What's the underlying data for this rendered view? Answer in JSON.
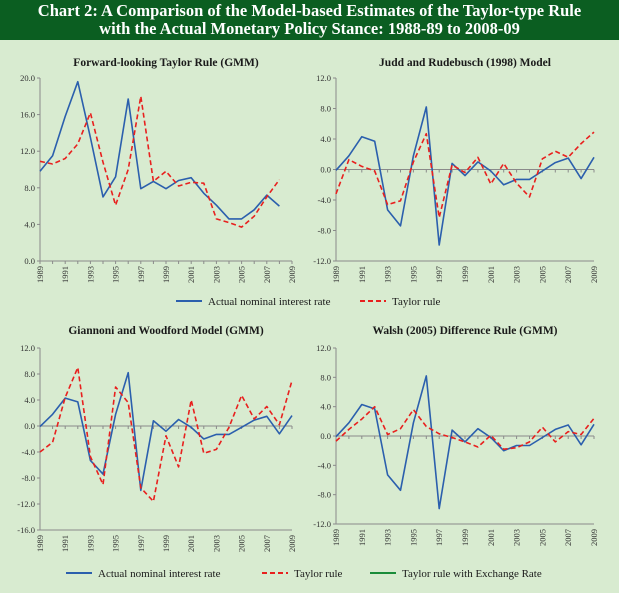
{
  "title_line1": "Chart 2: A Comparison of the Model-based Estimates of the Taylor-type Rule",
  "title_line2": "with the Actual Monetary Policy Stance: 1988-89 to 2008-09",
  "colors": {
    "title_bg": "#0b5e21",
    "title_text": "#ffffff",
    "background": "#d8ebd0",
    "actual": "#2b5fad",
    "taylor": "#e8201e",
    "exchange": "#1a8c3a",
    "axis": "#8a8a8a"
  },
  "chart_data": [
    {
      "type": "line",
      "title": "Forward-looking Taylor Rule (GMM)",
      "ylim": [
        0,
        20
      ],
      "yticks": [
        "0.0",
        "4.0",
        "8.0",
        "12.0",
        "16.0",
        "20.0"
      ],
      "xlabel": "",
      "ylabel": "",
      "x": [
        1989,
        1990,
        1991,
        1992,
        1993,
        1994,
        1995,
        1996,
        1997,
        1998,
        1999,
        2000,
        2001,
        2002,
        2003,
        2004,
        2005,
        2006,
        2007,
        2008,
        2009
      ],
      "xticks": [
        "1989",
        "1991",
        "1993",
        "1995",
        "1997",
        "1999",
        "2001",
        "2003",
        "2005",
        "2007",
        "2009"
      ],
      "series": [
        {
          "name": "Actual nominal interest rate",
          "style": "actual",
          "values": [
            9.8,
            11.5,
            15.8,
            19.6,
            13.5,
            7.0,
            9.2,
            17.7,
            7.9,
            8.7,
            7.9,
            8.8,
            9.1,
            7.4,
            6.1,
            4.6,
            4.6,
            5.6,
            7.2,
            6.0,
            null
          ]
        },
        {
          "name": "Taylor rule",
          "style": "taylor",
          "values": [
            10.9,
            10.6,
            11.2,
            12.8,
            16.2,
            10.8,
            6.1,
            10.0,
            18.0,
            8.7,
            9.8,
            8.2,
            8.6,
            8.5,
            4.6,
            4.2,
            3.7,
            4.9,
            7.0,
            8.9,
            null
          ]
        }
      ]
    },
    {
      "type": "line",
      "title": "Judd and Rudebusch (1998) Model",
      "ylim": [
        -12,
        12
      ],
      "yticks": [
        "-12.0",
        "-8.0",
        "-4.0",
        "0.0",
        "4.0",
        "8.0",
        "12.0"
      ],
      "xlabel": "",
      "ylabel": "",
      "x": [
        1989,
        1990,
        1991,
        1992,
        1993,
        1994,
        1995,
        1996,
        1997,
        1998,
        1999,
        2000,
        2001,
        2002,
        2003,
        2004,
        2005,
        2006,
        2007,
        2008,
        2009
      ],
      "xticks": [
        "1989",
        "1991",
        "1993",
        "1995",
        "1997",
        "1999",
        "2001",
        "2003",
        "2005",
        "2007",
        "2009"
      ],
      "series": [
        {
          "name": "Actual nominal interest rate",
          "style": "actual",
          "values": [
            -0.1,
            1.8,
            4.3,
            3.7,
            -5.3,
            -7.4,
            1.8,
            8.2,
            -9.9,
            0.8,
            -0.8,
            1.0,
            -0.2,
            -2.0,
            -1.3,
            -1.3,
            -0.2,
            0.9,
            1.5,
            -1.2,
            1.6
          ]
        },
        {
          "name": "Taylor rule",
          "style": "taylor",
          "values": [
            -3.2,
            1.3,
            0.4,
            -0.2,
            -4.6,
            -4.1,
            1.0,
            4.7,
            -6.3,
            0.6,
            -0.4,
            1.6,
            -1.9,
            0.8,
            -1.8,
            -3.6,
            1.4,
            2.4,
            1.6,
            3.4,
            4.9
          ]
        }
      ]
    },
    {
      "type": "line",
      "title": "Giannoni and Woodford Model (GMM)",
      "ylim": [
        -16,
        12
      ],
      "yticks": [
        "-16.0",
        "-12.0",
        "-8.0",
        "-4.0",
        "0.0",
        "4.0",
        "8.0",
        "12.0"
      ],
      "xlabel": "",
      "ylabel": "",
      "x": [
        1989,
        1990,
        1991,
        1992,
        1993,
        1994,
        1995,
        1996,
        1997,
        1998,
        1999,
        2000,
        2001,
        2002,
        2003,
        2004,
        2005,
        2006,
        2007,
        2008,
        2009
      ],
      "xticks": [
        "1989",
        "1991",
        "1993",
        "1995",
        "1997",
        "1999",
        "2001",
        "2003",
        "2005",
        "2007",
        "2009"
      ],
      "series": [
        {
          "name": "Actual nominal interest rate",
          "style": "actual",
          "values": [
            -0.1,
            1.8,
            4.3,
            3.7,
            -5.3,
            -7.4,
            1.8,
            8.2,
            -9.9,
            0.8,
            -0.8,
            1.0,
            -0.2,
            -2.0,
            -1.3,
            -1.3,
            -0.2,
            0.9,
            1.5,
            -1.2,
            1.6
          ]
        },
        {
          "name": "Taylor rule",
          "style": "taylor",
          "values": [
            -4.0,
            -2.5,
            4.4,
            9.0,
            -4.7,
            -9.0,
            6.0,
            3.6,
            -9.5,
            -11.6,
            -1.5,
            -6.3,
            4.0,
            -4.2,
            -3.6,
            -0.2,
            4.7,
            1.1,
            3.0,
            0.2,
            7.0
          ]
        }
      ]
    },
    {
      "type": "line",
      "title": "Walsh (2005) Difference Rule (GMM)",
      "ylim": [
        -12,
        12
      ],
      "yticks": [
        "-12.0",
        "-8.0",
        "-4.0",
        "0.0",
        "4.0",
        "8.0",
        "12.0"
      ],
      "xlabel": "",
      "ylabel": "",
      "x": [
        1989,
        1990,
        1991,
        1992,
        1993,
        1994,
        1995,
        1996,
        1997,
        1998,
        1999,
        2000,
        2001,
        2002,
        2003,
        2004,
        2005,
        2006,
        2007,
        2008,
        2009
      ],
      "xticks": [
        "1989",
        "1991",
        "1993",
        "1995",
        "1997",
        "1999",
        "2001",
        "2003",
        "2005",
        "2007",
        "2009"
      ],
      "series": [
        {
          "name": "Actual nominal interest rate",
          "style": "actual",
          "values": [
            -0.1,
            1.8,
            4.3,
            3.7,
            -5.3,
            -7.4,
            1.8,
            8.2,
            -9.9,
            0.8,
            -0.8,
            1.0,
            -0.2,
            -2.0,
            -1.3,
            -1.3,
            -0.2,
            0.9,
            1.5,
            -1.2,
            1.6
          ]
        },
        {
          "name": "Taylor rule",
          "style": "taylor",
          "values": [
            -0.7,
            0.9,
            2.3,
            4.0,
            0.2,
            1.0,
            3.6,
            1.3,
            0.3,
            -0.2,
            -0.8,
            -1.5,
            0.1,
            -1.8,
            -1.6,
            -0.8,
            1.2,
            -0.8,
            0.6,
            0.2,
            2.4
          ]
        },
        {
          "name": "Taylor rule with Exchange Rate",
          "style": "exchange",
          "values": [
            -0.7,
            0.9,
            2.3,
            4.0,
            0.2,
            1.0,
            3.6,
            1.3,
            0.3,
            -0.2,
            -0.8,
            -1.5,
            0.1,
            -1.8,
            -1.6,
            -0.8,
            1.2,
            -0.8,
            0.6,
            0.2,
            2.4
          ]
        }
      ]
    }
  ],
  "legend_top": [
    "Actual nominal interest rate",
    "Taylor rule"
  ],
  "legend_bottom": [
    "Actual nominal interest rate",
    "Taylor rule",
    "Taylor rule with Exchange Rate"
  ]
}
